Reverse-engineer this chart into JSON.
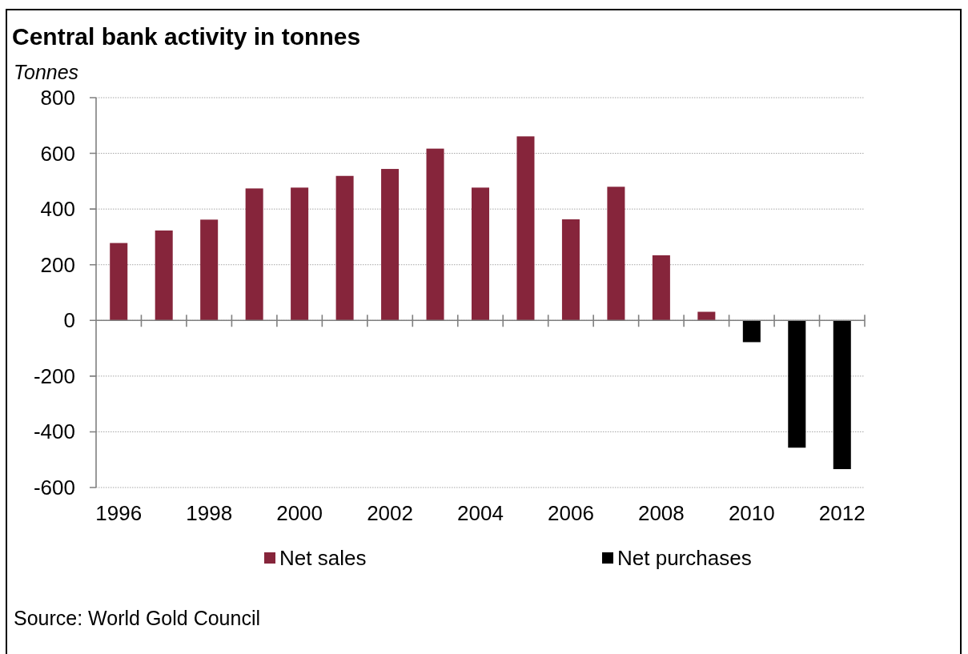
{
  "chart_data": {
    "type": "bar",
    "title": "Central bank activity in tonnes",
    "ylabel": "Tonnes",
    "categories": [
      "1996",
      null,
      "1998",
      null,
      "2000",
      null,
      "2002",
      null,
      "2004",
      null,
      "2006",
      null,
      "2008",
      null,
      "2010",
      null,
      "2012"
    ],
    "series": [
      {
        "name": "Net sales",
        "color": "#86253b",
        "values": [
          278,
          323,
          362,
          474,
          477,
          519,
          544,
          617,
          477,
          661,
          363,
          480,
          234,
          31,
          null,
          null,
          null
        ]
      },
      {
        "name": "Net purchases",
        "color": "#000000",
        "values": [
          null,
          null,
          null,
          null,
          null,
          null,
          null,
          null,
          null,
          null,
          null,
          null,
          null,
          null,
          -78,
          -457,
          -534
        ]
      }
    ],
    "stacked": true,
    "ylim": [
      -600,
      800
    ],
    "yticks": [
      -600,
      -400,
      -200,
      0,
      200,
      400,
      600,
      800
    ],
    "grid": "y",
    "legend": "bottom",
    "annotations": [
      "Source: World Gold Council"
    ]
  }
}
